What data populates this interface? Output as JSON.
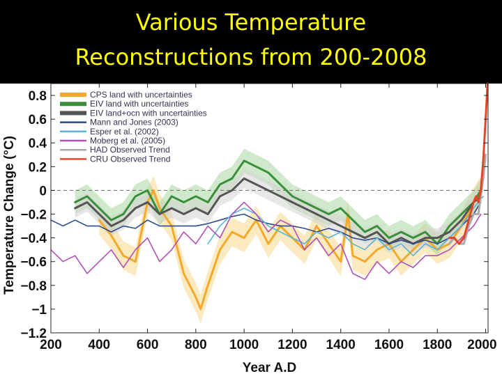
{
  "slide": {
    "title_line1": "Various Temperature",
    "title_line2": "Reconstructions from 200-2008"
  },
  "colors": {
    "title_bg": "#000000",
    "title_text": "#ffff00",
    "zero_line": "#777777"
  },
  "chart_data": {
    "type": "line",
    "title": "",
    "xlabel": "Year A.D",
    "ylabel": "Temperature Change (°C)",
    "xlim": [
      200,
      2010
    ],
    "ylim": [
      -1.2,
      0.9
    ],
    "xticks": [
      "200",
      "400",
      "600",
      "800",
      "1000",
      "1200",
      "1400",
      "1600",
      "1800",
      "2000"
    ],
    "yticks": [
      "0.8",
      "0.6",
      "0.4",
      "0.2",
      "0",
      "−0.2",
      "−0.4",
      "−0.6",
      "−0.8",
      "−1",
      "−1.2"
    ],
    "grid": false,
    "legend_position": "top-left",
    "series": [
      {
        "name": "CPS land with uncertainties",
        "color": "#f2a92c",
        "band_color": "#f7d78c",
        "band": 0.12,
        "x": [
          400,
          450,
          500,
          550,
          600,
          625,
          650,
          700,
          750,
          800,
          820,
          850,
          900,
          950,
          1000,
          1050,
          1100,
          1150,
          1200,
          1250,
          1300,
          1350,
          1400,
          1430,
          1450,
          1500,
          1550,
          1600,
          1650,
          1700,
          1750,
          1800,
          1850,
          1900,
          1950,
          1980
        ],
        "y": [
          -0.25,
          -0.38,
          -0.55,
          -0.6,
          -0.1,
          0.0,
          -0.15,
          -0.3,
          -0.7,
          -0.9,
          -1.0,
          -0.8,
          -0.5,
          -0.35,
          -0.4,
          -0.25,
          -0.45,
          -0.3,
          -0.4,
          -0.5,
          -0.3,
          -0.45,
          -0.6,
          -0.2,
          -0.55,
          -0.6,
          -0.5,
          -0.45,
          -0.6,
          -0.5,
          -0.4,
          -0.5,
          -0.45,
          -0.3,
          -0.1,
          0.0
        ]
      },
      {
        "name": "EIV land with uncertainties",
        "color": "#3a8f3a",
        "band_color": "#a9d6a0",
        "band": 0.1,
        "x": [
          300,
          350,
          400,
          450,
          500,
          550,
          600,
          650,
          700,
          750,
          800,
          850,
          900,
          950,
          1000,
          1050,
          1100,
          1150,
          1200,
          1250,
          1300,
          1350,
          1400,
          1450,
          1500,
          1550,
          1600,
          1650,
          1700,
          1750,
          1800,
          1850,
          1900,
          1950,
          1980
        ],
        "y": [
          -0.1,
          -0.05,
          -0.15,
          -0.25,
          -0.2,
          -0.05,
          0.0,
          -0.2,
          -0.05,
          -0.1,
          -0.05,
          -0.1,
          0.05,
          0.1,
          0.25,
          0.2,
          0.15,
          0.05,
          -0.05,
          -0.1,
          -0.15,
          -0.2,
          -0.15,
          -0.25,
          -0.35,
          -0.3,
          -0.4,
          -0.35,
          -0.4,
          -0.35,
          -0.45,
          -0.3,
          -0.2,
          -0.1,
          0.0
        ]
      },
      {
        "name": "EIV land+ocn with uncertainties",
        "color": "#555555",
        "band_color": "#d4d4d4",
        "band": 0.08,
        "x": [
          300,
          350,
          400,
          450,
          500,
          550,
          600,
          650,
          700,
          750,
          800,
          850,
          900,
          950,
          1000,
          1050,
          1100,
          1150,
          1200,
          1250,
          1300,
          1350,
          1400,
          1450,
          1500,
          1550,
          1600,
          1650,
          1700,
          1750,
          1800,
          1850,
          1900,
          1950,
          1980
        ],
        "y": [
          -0.15,
          -0.1,
          -0.2,
          -0.3,
          -0.25,
          -0.15,
          -0.1,
          -0.2,
          -0.15,
          -0.2,
          -0.15,
          -0.2,
          -0.05,
          0.0,
          0.1,
          0.05,
          0.0,
          -0.05,
          -0.1,
          -0.15,
          -0.2,
          -0.25,
          -0.3,
          -0.35,
          -0.4,
          -0.35,
          -0.45,
          -0.4,
          -0.45,
          -0.4,
          -0.4,
          -0.35,
          -0.25,
          -0.1,
          -0.05
        ]
      },
      {
        "name": "Mann and Jones (2003)",
        "color": "#2c4a8c",
        "x": [
          200,
          250,
          300,
          350,
          400,
          450,
          500,
          550,
          600,
          650,
          700,
          750,
          800,
          850,
          900,
          950,
          1000,
          1050,
          1100,
          1150,
          1200,
          1250,
          1300,
          1350,
          1400,
          1450,
          1500,
          1550,
          1600,
          1650,
          1700,
          1750,
          1800,
          1850,
          1900,
          1950,
          1980
        ],
        "y": [
          -0.25,
          -0.3,
          -0.25,
          -0.3,
          -0.3,
          -0.35,
          -0.3,
          -0.32,
          -0.25,
          -0.3,
          -0.3,
          -0.3,
          -0.3,
          -0.28,
          -0.25,
          -0.22,
          -0.2,
          -0.25,
          -0.28,
          -0.3,
          -0.3,
          -0.32,
          -0.35,
          -0.32,
          -0.35,
          -0.4,
          -0.42,
          -0.4,
          -0.45,
          -0.42,
          -0.45,
          -0.42,
          -0.45,
          -0.4,
          -0.3,
          -0.2,
          -0.1
        ]
      },
      {
        "name": "Esper et al. (2002)",
        "color": "#5ab4d6",
        "x": [
          850,
          900,
          950,
          1000,
          1050,
          1100,
          1150,
          1200,
          1250,
          1300,
          1350,
          1400,
          1450,
          1500,
          1550,
          1600,
          1650,
          1700,
          1750,
          1800,
          1850,
          1900,
          1950,
          1990
        ],
        "y": [
          -0.45,
          -0.3,
          -0.2,
          -0.15,
          -0.2,
          -0.3,
          -0.35,
          -0.4,
          -0.45,
          -0.35,
          -0.4,
          -0.35,
          -0.45,
          -0.5,
          -0.4,
          -0.5,
          -0.45,
          -0.55,
          -0.45,
          -0.5,
          -0.4,
          -0.3,
          -0.15,
          -0.05
        ]
      },
      {
        "name": "Moberg et al. (2005)",
        "color": "#b04fb8",
        "x": [
          200,
          250,
          300,
          350,
          400,
          450,
          500,
          550,
          600,
          650,
          700,
          750,
          800,
          850,
          900,
          950,
          1000,
          1050,
          1100,
          1150,
          1200,
          1250,
          1300,
          1350,
          1400,
          1450,
          1500,
          1550,
          1600,
          1650,
          1700,
          1750,
          1800,
          1850,
          1900,
          1950,
          1980
        ],
        "y": [
          -0.5,
          -0.6,
          -0.55,
          -0.7,
          -0.6,
          -0.5,
          -0.65,
          -0.5,
          -0.4,
          -0.6,
          -0.5,
          -0.35,
          -0.45,
          -0.3,
          -0.4,
          -0.2,
          -0.1,
          -0.2,
          -0.35,
          -0.25,
          -0.3,
          -0.5,
          -0.4,
          -0.55,
          -0.45,
          -0.7,
          -0.75,
          -0.6,
          -0.7,
          -0.6,
          -0.65,
          -0.55,
          -0.55,
          -0.5,
          -0.4,
          -0.3,
          -0.2
        ]
      },
      {
        "name": "HAD Observed Trend",
        "color": "#aaaaaa",
        "x": [
          1850,
          1870,
          1890,
          1910,
          1930,
          1950,
          1970,
          1990,
          2000
        ],
        "y": [
          -0.45,
          -0.4,
          -0.45,
          -0.45,
          -0.3,
          -0.2,
          -0.2,
          0.1,
          0.3
        ]
      },
      {
        "name": "CRU Observed Trend",
        "color": "#e2462a",
        "x": [
          1850,
          1870,
          1890,
          1910,
          1930,
          1950,
          1960,
          1970,
          1980,
          1990,
          2000,
          2008
        ],
        "y": [
          -0.4,
          -0.4,
          -0.45,
          -0.4,
          -0.25,
          -0.1,
          -0.05,
          -0.1,
          0.0,
          0.25,
          0.6,
          0.9
        ]
      }
    ]
  }
}
